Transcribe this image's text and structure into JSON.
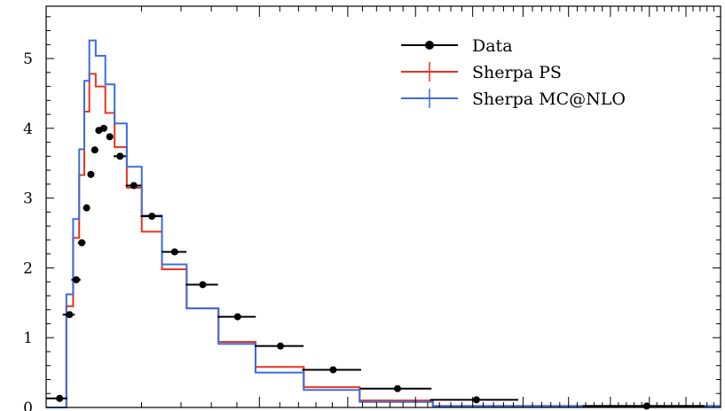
{
  "chart_data": {
    "type": "line",
    "title": "",
    "xlabel": "",
    "ylabel": "",
    "xlim": [
      0,
      1
    ],
    "ylim": [
      0,
      5.75
    ],
    "y_ticks": [
      {
        "value": 0,
        "label": "0"
      },
      {
        "value": 1,
        "label": "1"
      },
      {
        "value": 2,
        "label": "2"
      },
      {
        "value": 3,
        "label": "3"
      },
      {
        "value": 4,
        "label": "4"
      },
      {
        "value": 5,
        "label": "5"
      }
    ],
    "legend_position": "top-right",
    "series": [
      {
        "name": "Data",
        "kind": "points-with-errorbars",
        "color": "#000000",
        "points": [
          {
            "x": 0.0004,
            "y": 0.13,
            "xerr": 0.0006
          },
          {
            "x": 0.0012,
            "y": 1.33,
            "xerr": 0.0006
          },
          {
            "x": 0.002,
            "y": 1.83,
            "xerr": 0.0006
          },
          {
            "x": 0.0028,
            "y": 2.36,
            "xerr": 0.0006
          },
          {
            "x": 0.0036,
            "y": 2.86,
            "xerr": 0.0006
          },
          {
            "x": 0.0044,
            "y": 3.34,
            "xerr": 0.0006
          },
          {
            "x": 0.0052,
            "y": 3.69,
            "xerr": 0.0006
          },
          {
            "x": 0.0061,
            "y": 3.97,
            "xerr": 0.0006
          },
          {
            "x": 0.0073,
            "y": 4.0,
            "xerr": 0.0009
          },
          {
            "x": 0.0089,
            "y": 3.88,
            "xerr": 0.0009
          },
          {
            "x": 0.012,
            "y": 3.6,
            "xerr": 0.002
          },
          {
            "x": 0.0169,
            "y": 3.18,
            "xerr": 0.003
          },
          {
            "x": 0.0246,
            "y": 2.74,
            "xerr": 0.005
          },
          {
            "x": 0.0363,
            "y": 2.23,
            "xerr": 0.007
          },
          {
            "x": 0.0539,
            "y": 1.76,
            "xerr": 0.011
          },
          {
            "x": 0.0806,
            "y": 1.3,
            "xerr": 0.016
          },
          {
            "x": 0.1207,
            "y": 0.88,
            "xerr": 0.025
          },
          {
            "x": 0.1811,
            "y": 0.54,
            "xerr": 0.037
          },
          {
            "x": 0.2715,
            "y": 0.27,
            "xerr": 0.055
          },
          {
            "x": 0.407,
            "y": 0.11,
            "xerr": 0.083
          },
          {
            "x": 0.793,
            "y": 0.02,
            "xerr": 0.16
          }
        ]
      },
      {
        "name": "Sherpa PS",
        "kind": "step",
        "color": "#e8341c",
        "edges": [
          0,
          0.0009,
          0.0016,
          0.0024,
          0.0032,
          0.0041,
          0.0054,
          0.0077,
          0.0103,
          0.0143,
          0.0201,
          0.0295,
          0.0434,
          0.0653,
          0.0964,
          0.1459,
          0.2161,
          0.3288,
          0.4916,
          1.0
        ],
        "values": [
          0.0,
          1.45,
          2.43,
          3.33,
          4.24,
          4.78,
          4.6,
          4.22,
          3.73,
          3.15,
          2.52,
          1.98,
          1.42,
          0.94,
          0.58,
          0.29,
          0.1,
          0.02,
          0.02
        ]
      },
      {
        "name": "Sherpa MC@NLO",
        "kind": "step",
        "color": "#3c6de0",
        "edges": [
          0,
          0.0009,
          0.0016,
          0.0024,
          0.0032,
          0.0041,
          0.0054,
          0.0077,
          0.0103,
          0.0143,
          0.0201,
          0.0295,
          0.0434,
          0.0653,
          0.0964,
          0.1459,
          0.2161,
          0.3288,
          0.4916,
          1.0
        ],
        "values": [
          0.0,
          1.62,
          2.7,
          3.7,
          4.68,
          5.26,
          5.04,
          4.63,
          4.07,
          3.45,
          2.75,
          2.05,
          1.42,
          0.91,
          0.5,
          0.25,
          0.08,
          0.02,
          0.02
        ]
      }
    ]
  }
}
